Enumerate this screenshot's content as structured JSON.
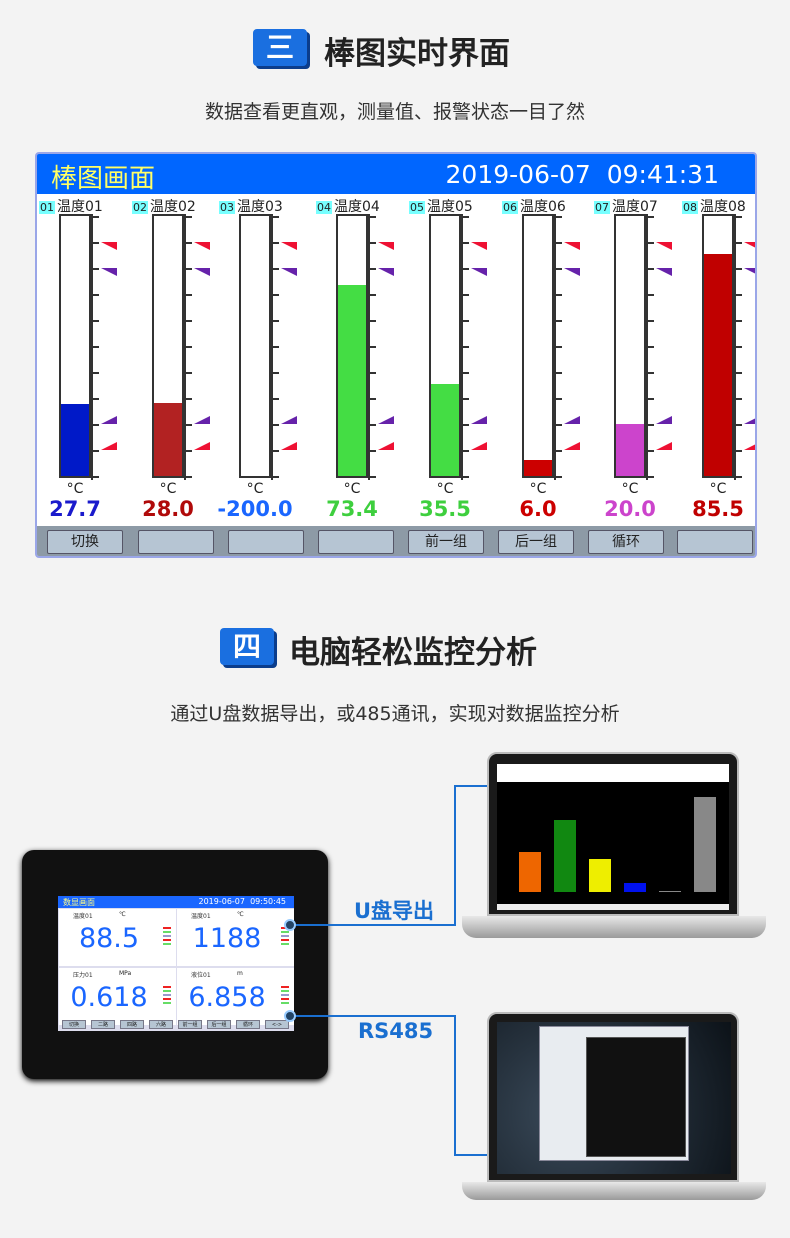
{
  "section3": {
    "badge": "三",
    "title": "棒图实时界面",
    "subtitle": "数据查看更直观，测量值、报警状态一目了然"
  },
  "panel": {
    "title": "棒图画面",
    "datetime": "2019-06-07  09:41:31",
    "bar_range": [
      0,
      100
    ],
    "alarm_levels": [
      {
        "level": 90,
        "color": "#ee1133"
      },
      {
        "level": 80,
        "color": "#6622aa"
      },
      {
        "level": 20,
        "color": "#6622aa"
      },
      {
        "level": 10,
        "color": "#ee1133"
      }
    ],
    "channels": [
      {
        "tag": "01",
        "label": "温度01",
        "unit": "°C",
        "value": "27.7",
        "bar_color": "#0019c8",
        "value_color": "#1a1acc"
      },
      {
        "tag": "02",
        "label": "温度02",
        "unit": "°C",
        "value": "28.0",
        "bar_color": "#b22222",
        "value_color": "#b00a0a"
      },
      {
        "tag": "03",
        "label": "温度03",
        "unit": "°C",
        "value": "-200.0",
        "bar_color": "#ffffff",
        "value_color": "#1a66ff"
      },
      {
        "tag": "04",
        "label": "温度04",
        "unit": "°C",
        "value": "73.4",
        "bar_color": "#44dd44",
        "value_color": "#3ecf3e"
      },
      {
        "tag": "05",
        "label": "温度05",
        "unit": "°C",
        "value": "35.5",
        "bar_color": "#44dd44",
        "value_color": "#3ecf3e"
      },
      {
        "tag": "06",
        "label": "温度06",
        "unit": "°C",
        "value": "6.0",
        "bar_color": "#cc0000",
        "value_color": "#cc0000"
      },
      {
        "tag": "07",
        "label": "温度07",
        "unit": "°C",
        "value": "20.0",
        "bar_color": "#cc44cc",
        "value_color": "#cc44cc"
      },
      {
        "tag": "08",
        "label": "温度08",
        "unit": "°C",
        "value": "85.5",
        "bar_color": "#c00000",
        "value_color": "#c00000"
      }
    ],
    "buttons": [
      "切换",
      "",
      "",
      "",
      "前一组",
      "后一组",
      "循环",
      ""
    ]
  },
  "section4": {
    "badge": "四",
    "title": "电脑轻松监控分析",
    "subtitle": "通过U盘数据导出，或485通讯，实现对数据监控分析"
  },
  "device": {
    "title": "数显画面",
    "datetime": "2019-06-07  09:50:45",
    "cells": [
      {
        "label": "温度01",
        "unit": "℃",
        "value": "88.5"
      },
      {
        "label": "温度01",
        "unit": "℃",
        "value": "1188"
      },
      {
        "label": "压力01",
        "unit": "MPa",
        "value": "0.618"
      },
      {
        "label": "液位01",
        "unit": "m",
        "value": "6.858"
      }
    ],
    "buttons": [
      "切换",
      "二路",
      "四路",
      "六路",
      "前一组",
      "后一组",
      "循环",
      "<->"
    ]
  },
  "connections": {
    "usb_label": "U盘导出",
    "rs485_label": "RS485"
  },
  "laptop1_bars": [
    {
      "value": 40,
      "color": "#ee6600"
    },
    {
      "value": 72,
      "color": "#118811"
    },
    {
      "value": 33,
      "color": "#eeee00"
    },
    {
      "value": 9,
      "color": "#0011ee"
    },
    {
      "value": 1,
      "color": "#888888"
    },
    {
      "value": 95,
      "color": "#888888"
    }
  ]
}
